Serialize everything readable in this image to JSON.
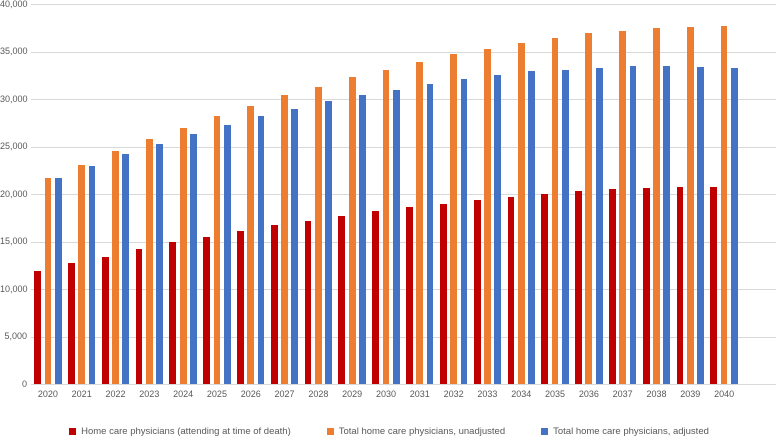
{
  "chart_data": {
    "type": "bar",
    "title": "",
    "xlabel": "",
    "ylabel": "",
    "categories": [
      "2020",
      "2021",
      "2022",
      "2023",
      "2024",
      "2025",
      "2026",
      "2027",
      "2028",
      "2029",
      "2030",
      "2031",
      "2032",
      "2033",
      "2034",
      "2035",
      "2036",
      "2037",
      "2038",
      "2039",
      "2040"
    ],
    "series": [
      {
        "name": "Home care physicians (attending at time of death)",
        "color": "#c00000",
        "values": [
          11900,
          12700,
          13400,
          14200,
          14900,
          15500,
          16100,
          16700,
          17200,
          17700,
          18200,
          18600,
          19000,
          19400,
          19700,
          20000,
          20300,
          20500,
          20600,
          20700,
          20700
        ]
      },
      {
        "name": "Total home care physicians, unadjusted",
        "color": "#ed7d31",
        "values": [
          21700,
          23100,
          24500,
          25800,
          27000,
          28200,
          29300,
          30400,
          31300,
          32300,
          33100,
          33900,
          34700,
          35300,
          35900,
          36400,
          36900,
          37200,
          37500,
          37600,
          37700
        ]
      },
      {
        "name": "Total home care physicians, adjusted",
        "color": "#4472c4",
        "values": [
          21700,
          23000,
          24200,
          25300,
          26300,
          27300,
          28200,
          29000,
          29800,
          30400,
          31000,
          31600,
          32100,
          32500,
          32900,
          33100,
          33300,
          33500,
          33500,
          33400,
          33300
        ]
      }
    ],
    "ylim": [
      0,
      40000
    ],
    "ytick_interval": 5000,
    "ytick_labels": [
      "0",
      "5,000",
      "10,000",
      "15,000",
      "20,000",
      "25,000",
      "30,000",
      "35,000",
      "40,000"
    ],
    "grid": true,
    "legend_position": "bottom"
  },
  "colors": {
    "background": "#ffffff",
    "gridline": "#d9d9d9",
    "axis_text": "#595959",
    "series_red": "#c00000",
    "series_orange": "#ed7d31",
    "series_blue": "#4472c4"
  }
}
